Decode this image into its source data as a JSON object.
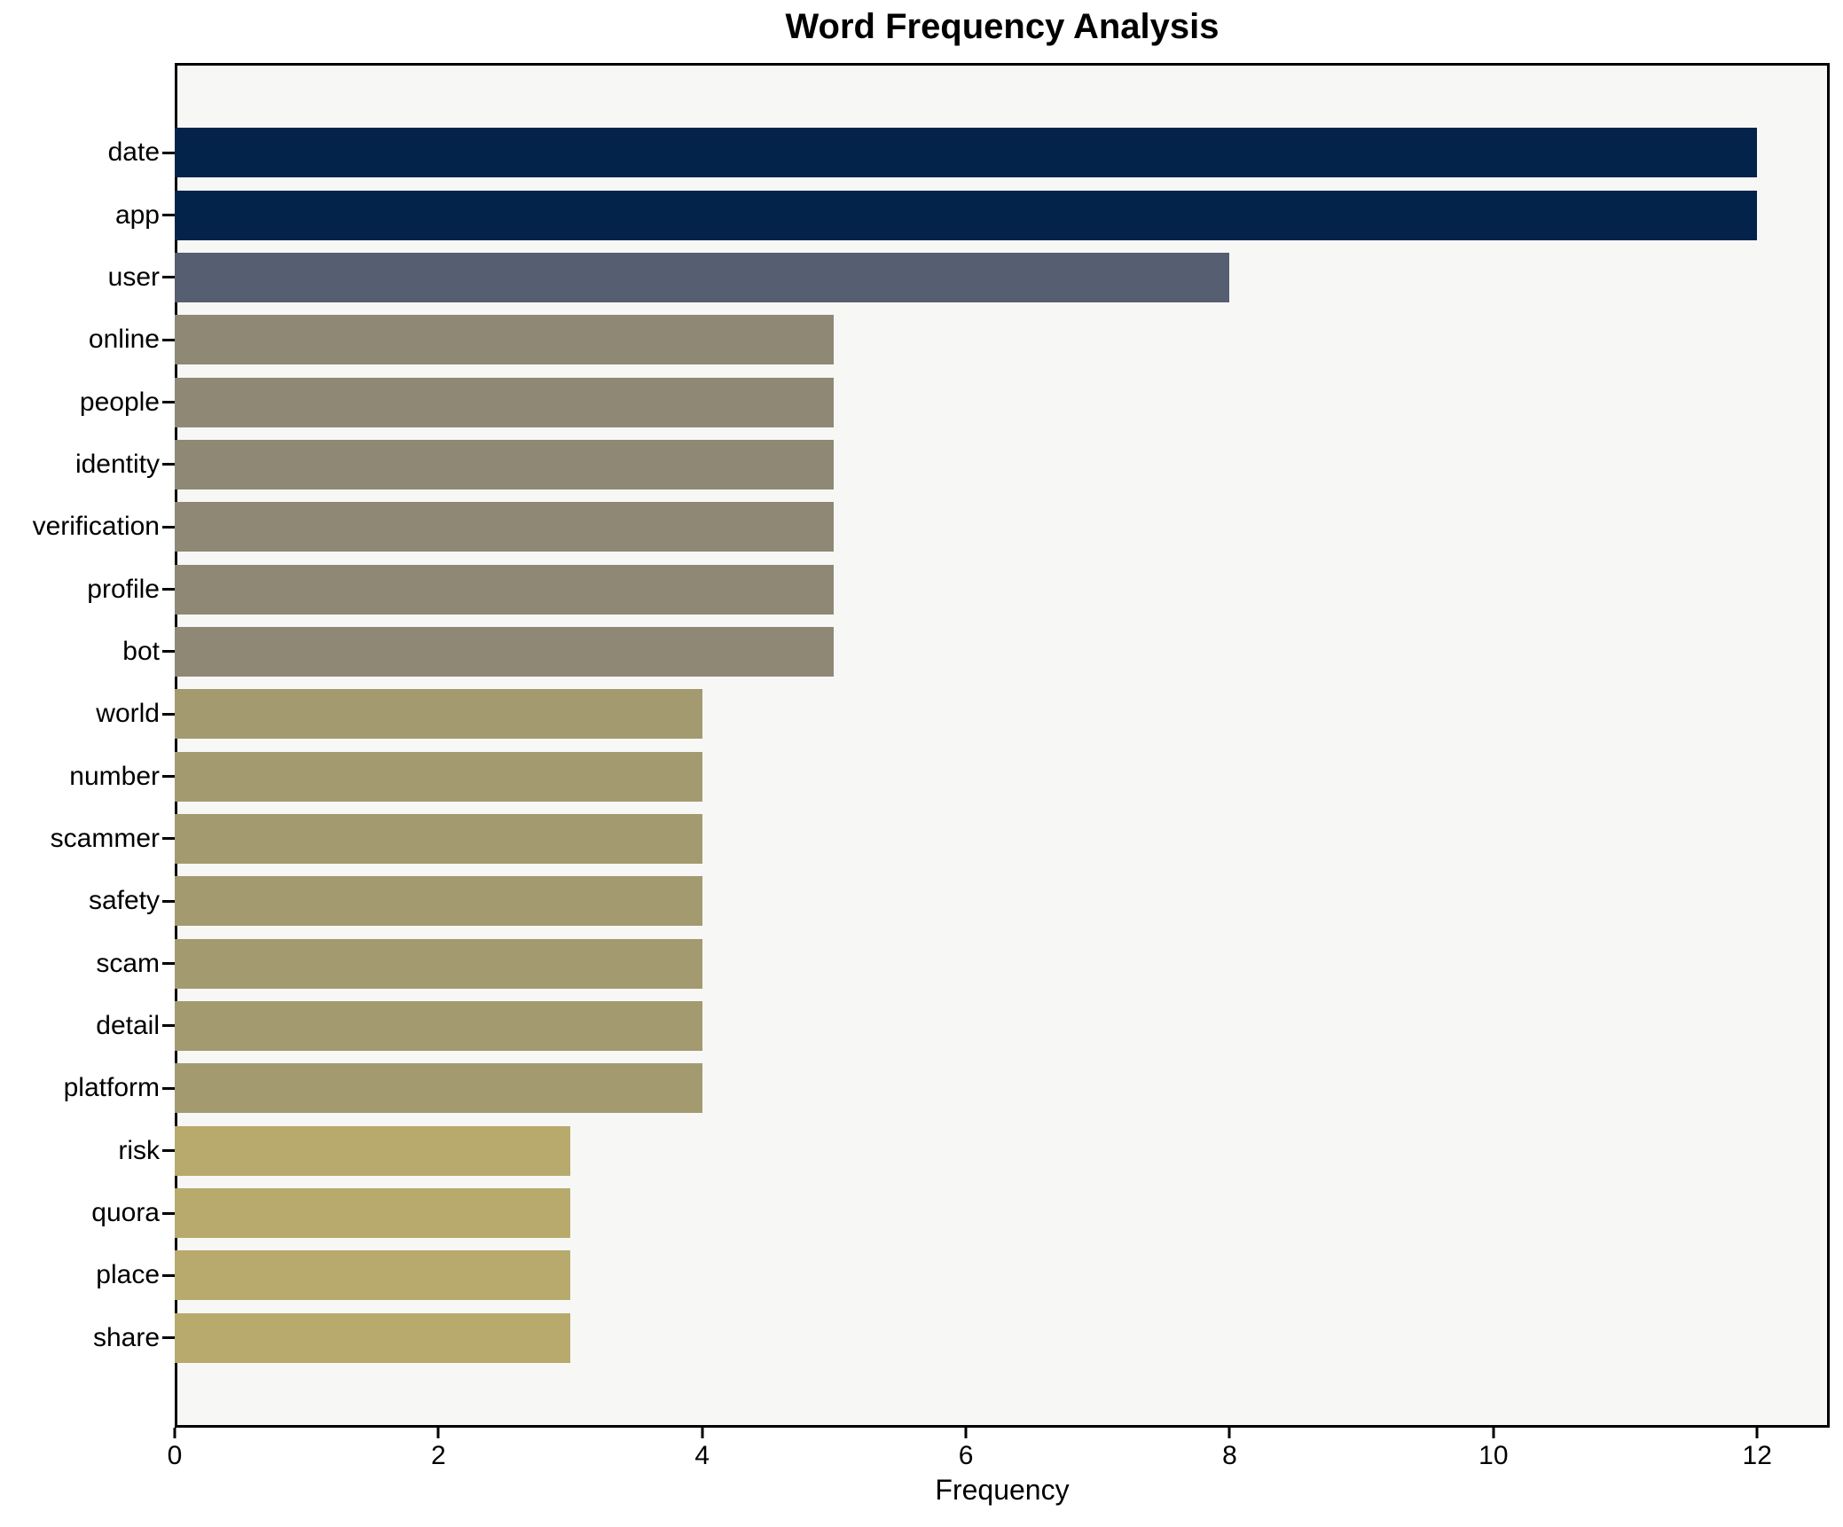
{
  "chart_data": {
    "type": "bar",
    "orientation": "horizontal",
    "title": "Word Frequency Analysis",
    "xlabel": "Frequency",
    "ylabel": "",
    "categories": [
      "date",
      "app",
      "user",
      "online",
      "people",
      "identity",
      "verification",
      "profile",
      "bot",
      "world",
      "number",
      "scammer",
      "safety",
      "scam",
      "detail",
      "platform",
      "risk",
      "quora",
      "place",
      "share"
    ],
    "values": [
      12,
      12,
      8,
      5,
      5,
      5,
      5,
      5,
      5,
      4,
      4,
      4,
      4,
      4,
      4,
      4,
      3,
      3,
      3,
      3
    ],
    "bar_colors": [
      "#04234a",
      "#04234a",
      "#565e72",
      "#8e8875",
      "#8e8875",
      "#8e8875",
      "#8e8875",
      "#8e8875",
      "#8e8875",
      "#a39a70",
      "#a39a70",
      "#a39a70",
      "#a39a70",
      "#a39a70",
      "#a39a70",
      "#a39a70",
      "#b8aa6c",
      "#b8aa6c",
      "#b8aa6c",
      "#b8aa6c"
    ],
    "xlim": [
      0,
      12.55
    ],
    "x_ticks": [
      0,
      2,
      4,
      6,
      8,
      10,
      12
    ],
    "grid": false,
    "legend_position": "none",
    "colors": {
      "figure_background": "#ffffff",
      "plot_background": "#f7f7f6",
      "spine": "#000000",
      "text": "#000000"
    }
  }
}
